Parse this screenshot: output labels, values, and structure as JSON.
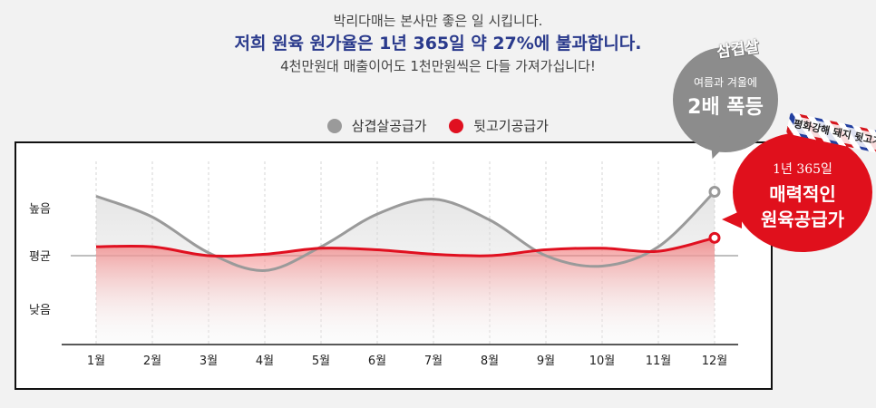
{
  "header": {
    "line1": "박리다매는 본사만 좋은 일 시킵니다.",
    "line2": "저희 원육 원가율은 1년 365일 약 27%에 불과합니다.",
    "line3": "4천만원대 매출이어도 1천만원씩은 다들 가져가십니다!"
  },
  "callouts": {
    "gray_tag": "삼겹살",
    "gray_small": "여름과 겨울에",
    "gray_big": "2배 폭등",
    "red_small": "1년 365일",
    "red_big1": "매력적인",
    "red_big2": "원육공급가",
    "ribbon": "평화강해 돼지 뒷고기"
  },
  "colors": {
    "gray_series": "#9a9a9a",
    "red_series": "#e01020"
  },
  "chart_data": {
    "type": "line",
    "categories": [
      "1월",
      "2월",
      "3월",
      "4월",
      "5월",
      "6월",
      "7월",
      "8월",
      "9월",
      "10월",
      "11월",
      "12월"
    ],
    "y_levels": [
      "높음",
      "평균",
      "낮음"
    ],
    "ylim": [
      0,
      10
    ],
    "series": [
      {
        "name": "삼겹살공급가",
        "color": "#9a9a9a",
        "values": [
          9.0,
          7.6,
          5.2,
          4.0,
          5.6,
          7.8,
          8.8,
          7.4,
          5.0,
          4.3,
          5.6,
          9.3
        ]
      },
      {
        "name": "뒷고기공급가",
        "color": "#e01020",
        "values": [
          5.6,
          5.6,
          5.0,
          5.1,
          5.5,
          5.4,
          5.1,
          5.0,
          5.4,
          5.5,
          5.3,
          6.2
        ]
      }
    ],
    "title": "",
    "xlabel": "",
    "ylabel": ""
  }
}
